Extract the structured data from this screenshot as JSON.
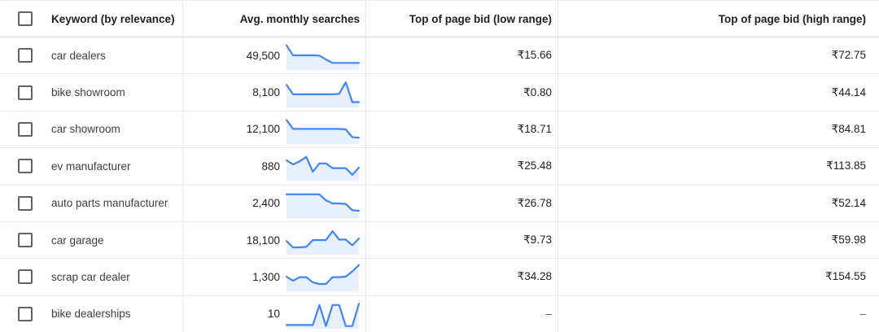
{
  "table": {
    "columns": [
      {
        "id": "keyword",
        "label": "Keyword (by relevance)"
      },
      {
        "id": "avg_monthly_searches",
        "label": "Avg. monthly searches"
      },
      {
        "id": "low_bid",
        "label": "Top of page bid (low range)"
      },
      {
        "id": "high_bid",
        "label": "Top of page bid (high range)"
      }
    ],
    "rows": [
      {
        "keyword": "car dealers",
        "avg_monthly_searches": "49,500",
        "low_bid": "₹15.66",
        "high_bid": "₹72.75",
        "trend": [
          0.88,
          0.5,
          0.5,
          0.5,
          0.5,
          0.49,
          0.34,
          0.21,
          0.21,
          0.21,
          0.21,
          0.21
        ]
      },
      {
        "keyword": "bike showroom",
        "avg_monthly_searches": "8,100",
        "low_bid": "₹0.80",
        "high_bid": "₹44.14",
        "trend": [
          0.8,
          0.44,
          0.44,
          0.44,
          0.44,
          0.44,
          0.44,
          0.44,
          0.46,
          0.9,
          0.14,
          0.14
        ]
      },
      {
        "keyword": "car showroom",
        "avg_monthly_searches": "12,100",
        "low_bid": "₹18.71",
        "high_bid": "₹84.81",
        "trend": [
          0.86,
          0.52,
          0.52,
          0.52,
          0.52,
          0.52,
          0.52,
          0.52,
          0.52,
          0.5,
          0.2,
          0.18
        ]
      },
      {
        "keyword": "ev manufacturer",
        "avg_monthly_searches": "880",
        "low_bid": "₹25.48",
        "high_bid": "₹113.85",
        "trend": [
          0.72,
          0.56,
          0.68,
          0.85,
          0.28,
          0.6,
          0.6,
          0.42,
          0.42,
          0.42,
          0.16,
          0.44
        ]
      },
      {
        "keyword": "auto parts manufacturer",
        "avg_monthly_searches": "2,400",
        "low_bid": "₹26.78",
        "high_bid": "₹52.14",
        "trend": [
          0.85,
          0.85,
          0.85,
          0.85,
          0.85,
          0.85,
          0.62,
          0.5,
          0.5,
          0.48,
          0.24,
          0.22
        ]
      },
      {
        "keyword": "car garage",
        "avg_monthly_searches": "18,100",
        "low_bid": "₹9.73",
        "high_bid": "₹59.98",
        "trend": [
          0.46,
          0.22,
          0.22,
          0.24,
          0.5,
          0.5,
          0.5,
          0.84,
          0.52,
          0.52,
          0.3,
          0.56
        ]
      },
      {
        "keyword": "scrap car dealer",
        "avg_monthly_searches": "1,300",
        "low_bid": "₹34.28",
        "high_bid": "₹154.55",
        "trend": [
          0.5,
          0.34,
          0.48,
          0.48,
          0.28,
          0.22,
          0.22,
          0.48,
          0.48,
          0.5,
          0.7,
          0.95
        ]
      },
      {
        "keyword": "bike dealerships",
        "avg_monthly_searches": "10",
        "low_bid": "–",
        "high_bid": "–",
        "trend": [
          0.08,
          0.08,
          0.08,
          0.08,
          0.08,
          0.85,
          0.04,
          0.85,
          0.85,
          0.04,
          0.04,
          0.9
        ]
      }
    ]
  },
  "colors": {
    "accent_blue": "#4285f4",
    "sparkline_fill": "#e8f0fe",
    "row_border": "#e6e8eb",
    "header_border": "#dcdee1",
    "text_primary": "#202124",
    "text_secondary": "#3c4043",
    "checkbox_border": "#5f6368",
    "muted_text": "#5f6368"
  }
}
